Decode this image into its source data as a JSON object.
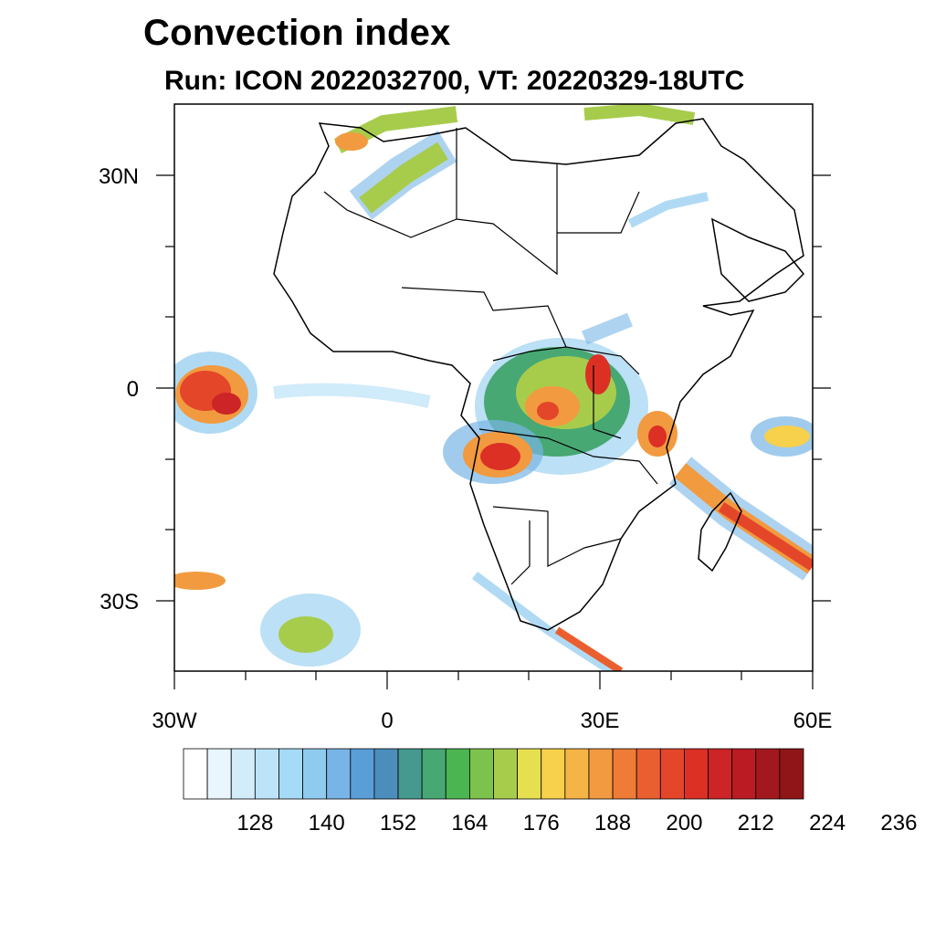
{
  "title": "Convection index",
  "subtitle": "Run: ICON 2022032700,  VT: 20220329-18UTC",
  "map": {
    "region": "Africa and surrounding seas",
    "lon_range": [
      -30,
      60
    ],
    "lat_range": [
      -40,
      40
    ],
    "y_axis_labels": [
      "30N",
      "0",
      "30S"
    ],
    "x_axis_labels": [
      "30W",
      "0",
      "30E",
      "60E"
    ],
    "field": "convection index"
  },
  "colorbar": {
    "colors": [
      "#ffffff",
      "#e9f6fd",
      "#d3ecfa",
      "#bce3f8",
      "#a5dbf6",
      "#8fcbef",
      "#78b5e6",
      "#5a9ed8",
      "#4b8dbb",
      "#46998f",
      "#47a873",
      "#4bb651",
      "#7dc24c",
      "#a7cc4c",
      "#e6e050",
      "#f7d04c",
      "#f5b446",
      "#f29a3f",
      "#ef7c36",
      "#ea5f2f",
      "#e4462a",
      "#dc3025",
      "#cc2427",
      "#bb1b23",
      "#a3181e",
      "#8f1519"
    ],
    "tick_labels": [
      "128",
      "140",
      "152",
      "164",
      "176",
      "188",
      "200",
      "212",
      "224",
      "236"
    ],
    "tick_values": [
      128,
      140,
      152,
      164,
      176,
      188,
      200,
      212,
      224,
      236
    ],
    "min": 116,
    "step": 4
  }
}
